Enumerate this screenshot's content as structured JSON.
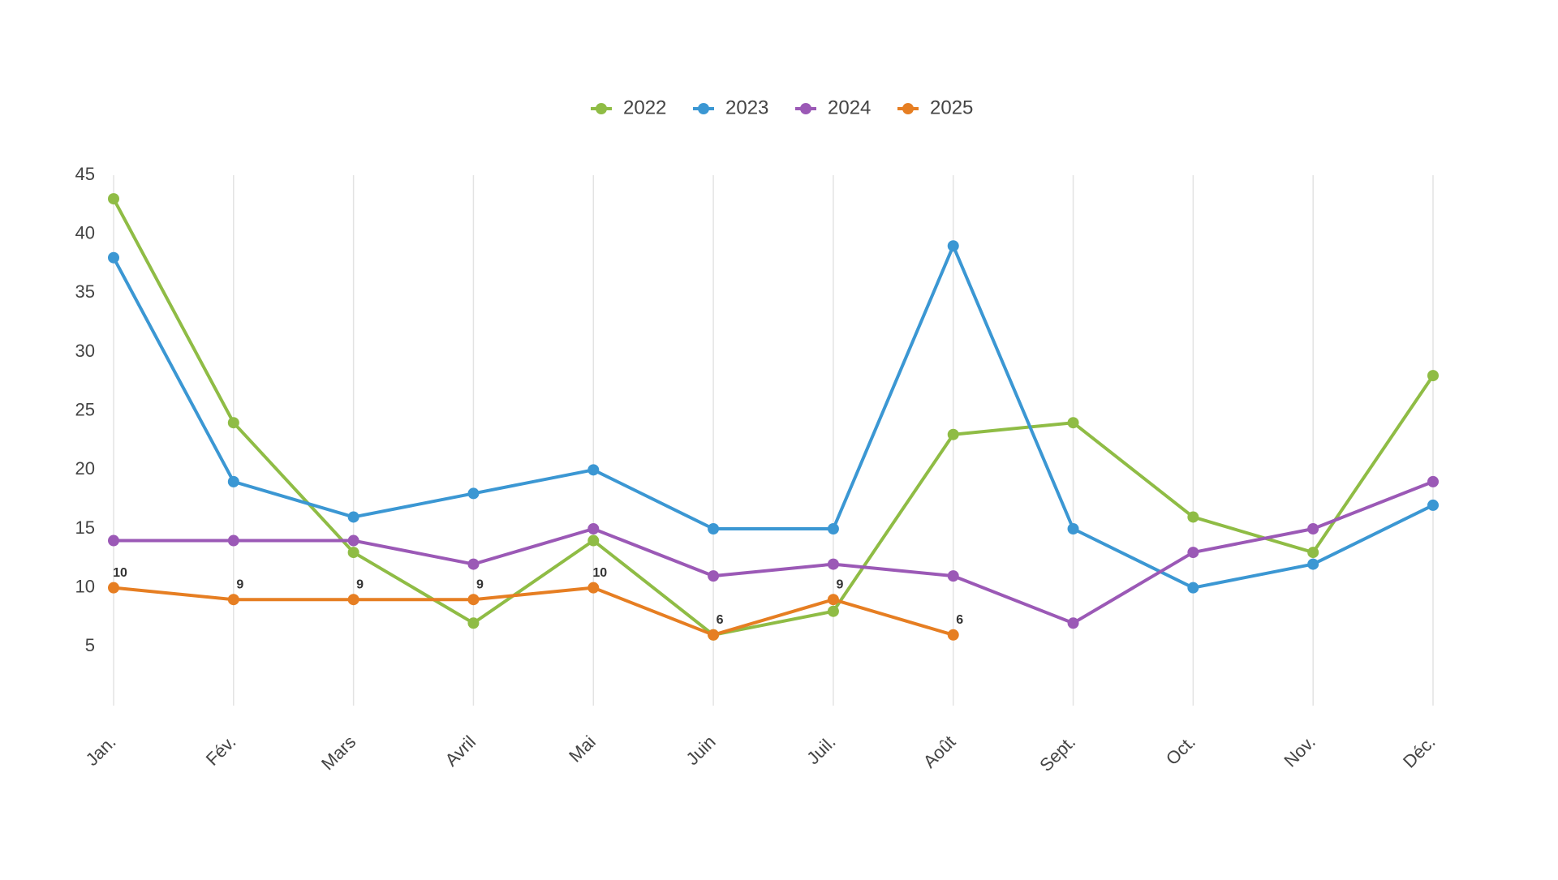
{
  "chart_data": {
    "type": "line",
    "categories": [
      "Jan.",
      "Fév.",
      "Mars",
      "Avril",
      "Mai",
      "Juin",
      "Juil.",
      "Août",
      "Sept.",
      "Oct.",
      "Nov.",
      "Déc."
    ],
    "series": [
      {
        "name": "2022",
        "color": "#8fbc45",
        "values": [
          43,
          24,
          13,
          7,
          14,
          6,
          8,
          23,
          24,
          16,
          13,
          28
        ]
      },
      {
        "name": "2023",
        "color": "#3b97d3",
        "values": [
          38,
          19,
          16,
          18,
          20,
          15,
          15,
          39,
          15,
          10,
          12,
          17
        ]
      },
      {
        "name": "2024",
        "color": "#9b59b6",
        "values": [
          14,
          14,
          14,
          12,
          15,
          11,
          12,
          11,
          7,
          13,
          15,
          19
        ]
      },
      {
        "name": "2025",
        "color": "#e67e22",
        "values": [
          10,
          9,
          9,
          9,
          10,
          6,
          9,
          6,
          null,
          null,
          null,
          null
        ],
        "data_labels": true
      }
    ],
    "ylim": [
      0,
      45
    ],
    "yticks": [
      5,
      10,
      15,
      20,
      25,
      30,
      35,
      40,
      45
    ],
    "grid": "vertical",
    "legend": "top"
  }
}
